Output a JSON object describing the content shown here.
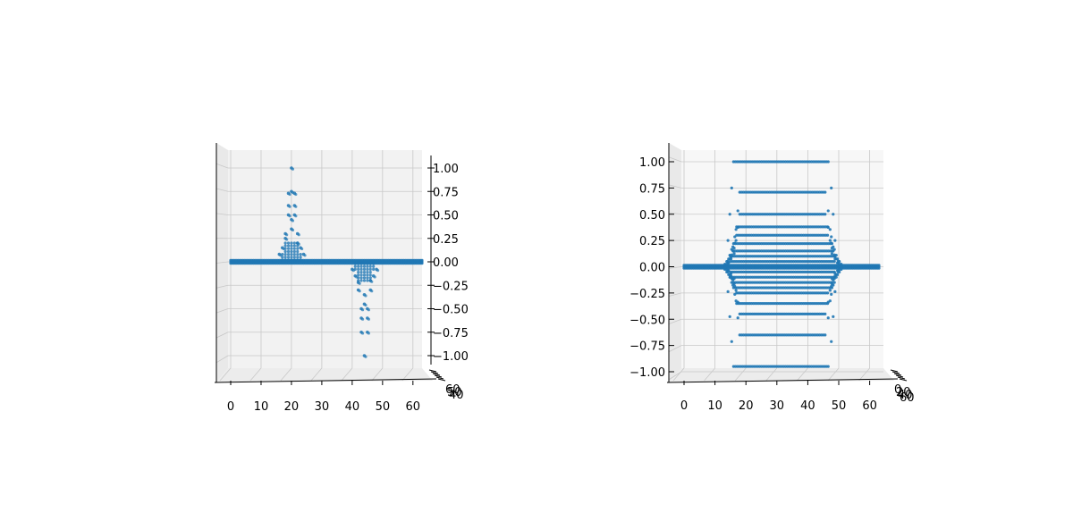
{
  "chart_data": [
    {
      "type": "scatter",
      "projection": "3d",
      "view": "front, looking along the second horizontal axis",
      "title": "",
      "xlabel": "",
      "ylabel": "",
      "zlabel": "",
      "xlim": [
        0,
        63
      ],
      "zlim": [
        -1.0,
        1.0
      ],
      "grid": true,
      "legend": "none",
      "marker_color": "#1f77b4",
      "pane_color": "#f2f2f2",
      "x_ticks": [
        "0",
        "10",
        "20",
        "30",
        "40",
        "50",
        "60"
      ],
      "z_ticks": [
        "1.00",
        "0.75",
        "0.50",
        "0.25",
        "0.00",
        "−0.25",
        "−0.50",
        "−0.75",
        "−1.00"
      ],
      "depth_ticks": [
        "60",
        "50",
        "40"
      ],
      "series": [
        {
          "description_of_values": "baseline at 0 across x 0–63; positive spike centred near x≈20, negative spike centred near x≈44",
          "baseline": {
            "x_range": [
              0,
              63
            ],
            "z": 0.0
          },
          "positive_peak": {
            "x_center": 20,
            "points": [
              {
                "x": 20,
                "z": 1.0
              },
              {
                "x": 20,
                "z": 0.75
              },
              {
                "x": 19,
                "z": 0.73
              },
              {
                "x": 21,
                "z": 0.73
              },
              {
                "x": 19,
                "z": 0.5
              },
              {
                "x": 21,
                "z": 0.5
              },
              {
                "x": 20,
                "z": 0.45
              },
              {
                "x": 18,
                "z": 0.3
              },
              {
                "x": 22,
                "z": 0.3
              },
              {
                "x": 17,
                "z": 0.15
              },
              {
                "x": 23,
                "z": 0.15
              },
              {
                "x": 18,
                "z": 0.25
              },
              {
                "x": 22,
                "z": 0.2
              },
              {
                "x": 16,
                "z": 0.08
              },
              {
                "x": 24,
                "z": 0.08
              },
              {
                "x": 20,
                "z": 0.35
              },
              {
                "x": 19,
                "z": 0.6
              },
              {
                "x": 21,
                "z": 0.6
              }
            ]
          },
          "negative_peak": {
            "x_center": 44,
            "points": [
              {
                "x": 44,
                "z": -1.0
              },
              {
                "x": 43,
                "z": -0.75
              },
              {
                "x": 45,
                "z": -0.75
              },
              {
                "x": 43,
                "z": -0.5
              },
              {
                "x": 45,
                "z": -0.5
              },
              {
                "x": 44,
                "z": -0.45
              },
              {
                "x": 42,
                "z": -0.3
              },
              {
                "x": 46,
                "z": -0.3
              },
              {
                "x": 41,
                "z": -0.15
              },
              {
                "x": 47,
                "z": -0.15
              },
              {
                "x": 42,
                "z": -0.22
              },
              {
                "x": 46,
                "z": -0.2
              },
              {
                "x": 40,
                "z": -0.08
              },
              {
                "x": 48,
                "z": -0.08
              },
              {
                "x": 44,
                "z": -0.35
              },
              {
                "x": 43,
                "z": -0.6
              },
              {
                "x": 45,
                "z": -0.6
              }
            ]
          }
        }
      ]
    },
    {
      "type": "scatter",
      "projection": "3d",
      "view": "front, looking along the second horizontal axis",
      "title": "",
      "xlabel": "",
      "ylabel": "",
      "zlabel": "",
      "xlim": [
        0,
        63
      ],
      "zlim": [
        -1.0,
        1.0
      ],
      "grid": true,
      "legend": "none",
      "marker_color": "#1f77b4",
      "pane_color": "#f7f7f7",
      "x_ticks": [
        "0",
        "10",
        "20",
        "30",
        "40",
        "50",
        "60"
      ],
      "z_ticks": [
        "1.00",
        "0.75",
        "0.50",
        "0.25",
        "0.00",
        "−0.25",
        "−0.50",
        "−0.75",
        "−1.00"
      ],
      "depth_ticks": [
        "0",
        "20",
        "40",
        "60"
      ],
      "series": [
        {
          "description_of_values": "horizontal rows of points between x≈16 and x≈48 at discrete levels, with baseline at 0 across x 0–63",
          "baseline": {
            "x_range": [
              0,
              63
            ],
            "z": 0.0
          },
          "levels": [
            {
              "z": 1.0,
              "x_range": [
                16,
                47
              ]
            },
            {
              "z": 0.71,
              "x_range": [
                18,
                46
              ]
            },
            {
              "z": 0.5,
              "x_range": [
                18,
                46
              ]
            },
            {
              "z": 0.38,
              "x_range": [
                17,
                47
              ]
            },
            {
              "z": 0.3,
              "x_range": [
                17,
                47
              ]
            },
            {
              "z": 0.22,
              "x_range": [
                16,
                48
              ]
            },
            {
              "z": 0.15,
              "x_range": [
                16,
                48
              ]
            },
            {
              "z": 0.1,
              "x_range": [
                15,
                49
              ]
            },
            {
              "z": 0.05,
              "x_range": [
                15,
                49
              ]
            },
            {
              "z": -0.05,
              "x_range": [
                15,
                49
              ]
            },
            {
              "z": -0.1,
              "x_range": [
                15,
                49
              ]
            },
            {
              "z": -0.15,
              "x_range": [
                16,
                48
              ]
            },
            {
              "z": -0.2,
              "x_range": [
                16,
                48
              ]
            },
            {
              "z": -0.25,
              "x_range": [
                17,
                47
              ]
            },
            {
              "z": -0.35,
              "x_range": [
                17,
                47
              ]
            },
            {
              "z": -0.45,
              "x_range": [
                18,
                46
              ]
            },
            {
              "z": -0.65,
              "x_range": [
                18,
                46
              ]
            },
            {
              "z": -0.95,
              "x_range": [
                16,
                47
              ]
            }
          ]
        }
      ]
    }
  ]
}
